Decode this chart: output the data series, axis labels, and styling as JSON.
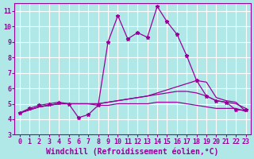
{
  "background_color": "#b0e8e8",
  "grid_color": "#ffffff",
  "line_color": "#990099",
  "marker_color": "#990099",
  "xlabel": "Windchill (Refroidissement éolien,°C)",
  "xlabel_fontsize": 7,
  "tick_fontsize": 6,
  "xlim": [
    -0.5,
    23.5
  ],
  "ylim": [
    3,
    11.5
  ],
  "xticks": [
    0,
    1,
    2,
    3,
    4,
    5,
    6,
    7,
    8,
    9,
    10,
    11,
    12,
    13,
    14,
    15,
    16,
    17,
    18,
    19,
    20,
    21,
    22,
    23
  ],
  "yticks": [
    3,
    4,
    5,
    6,
    7,
    8,
    9,
    10,
    11
  ],
  "series": [
    [
      4.4,
      4.7,
      4.9,
      5.0,
      5.1,
      5.0,
      4.1,
      4.3,
      4.9,
      9.0,
      10.7,
      9.2,
      9.6,
      9.3,
      11.3,
      10.3,
      9.5,
      8.1,
      6.5,
      5.5,
      5.2,
      5.1,
      4.6,
      4.6
    ],
    [
      4.4,
      4.6,
      4.8,
      4.9,
      5.0,
      5.0,
      5.0,
      5.0,
      5.0,
      5.1,
      5.2,
      5.3,
      5.4,
      5.5,
      5.7,
      5.9,
      6.1,
      6.3,
      6.5,
      6.4,
      5.4,
      5.2,
      5.1,
      4.5
    ],
    [
      4.4,
      4.6,
      4.8,
      4.9,
      5.0,
      5.0,
      5.0,
      5.0,
      5.0,
      5.1,
      5.2,
      5.3,
      5.4,
      5.5,
      5.6,
      5.7,
      5.8,
      5.8,
      5.7,
      5.5,
      5.2,
      5.1,
      5.0,
      4.7
    ],
    [
      4.4,
      4.6,
      4.8,
      4.9,
      5.0,
      5.0,
      5.0,
      5.0,
      4.9,
      4.9,
      5.0,
      5.0,
      5.0,
      5.0,
      5.1,
      5.1,
      5.1,
      5.0,
      4.9,
      4.8,
      4.7,
      4.7,
      4.7,
      4.5
    ]
  ],
  "x_values": [
    0,
    1,
    2,
    3,
    4,
    5,
    6,
    7,
    8,
    9,
    10,
    11,
    12,
    13,
    14,
    15,
    16,
    17,
    18,
    19,
    20,
    21,
    22,
    23
  ]
}
